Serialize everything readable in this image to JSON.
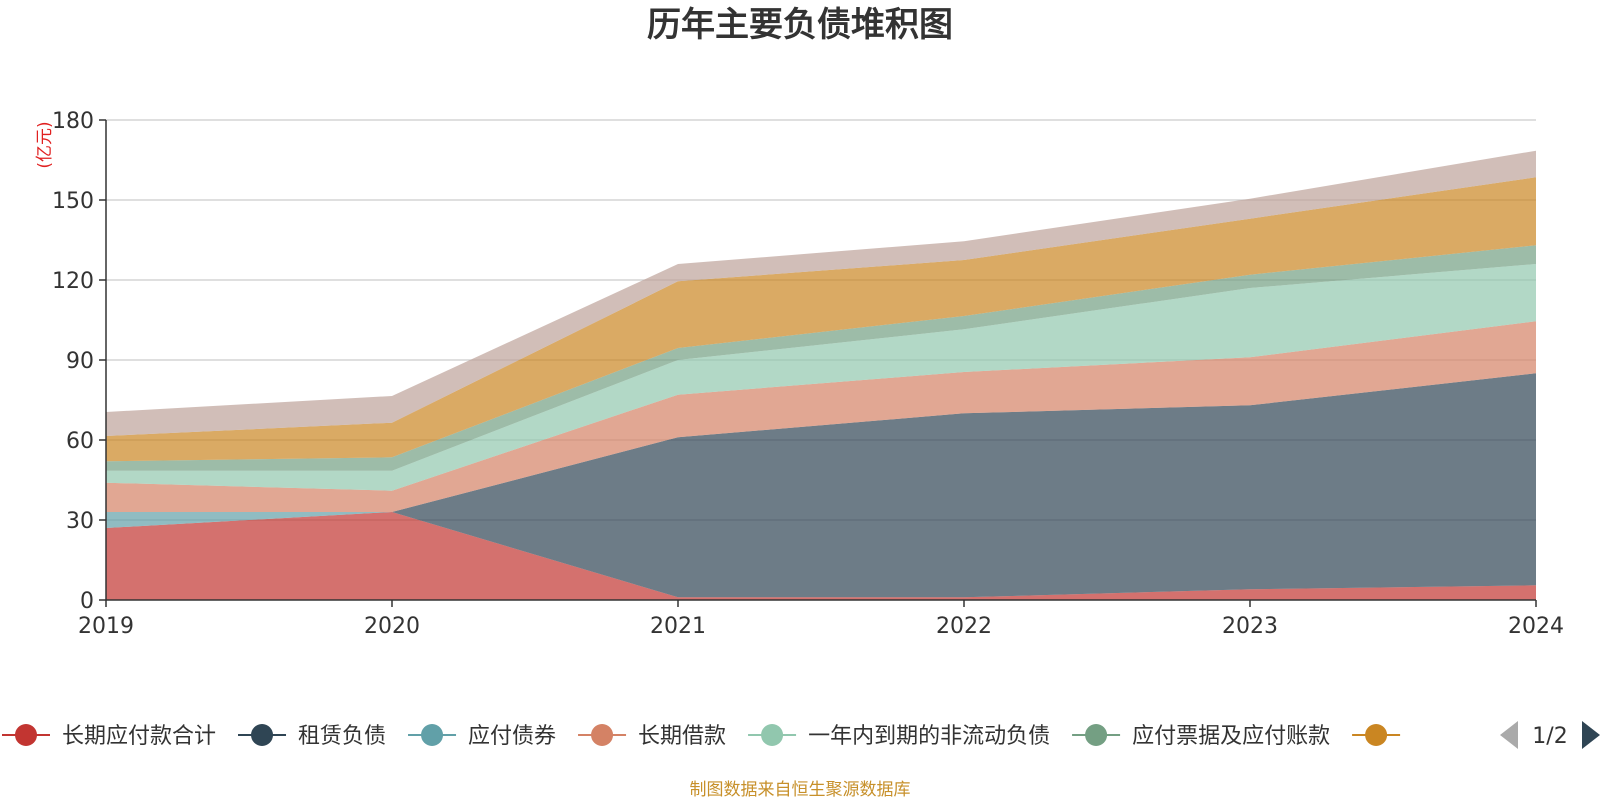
{
  "chart_data": {
    "type": "area",
    "stacked": true,
    "title": "历年主要负债堆积图",
    "y_unit": "(亿元)",
    "categories": [
      "2019",
      "2020",
      "2021",
      "2022",
      "2023",
      "2024"
    ],
    "ylim": [
      0,
      180
    ],
    "yticks": [
      0,
      30,
      60,
      90,
      120,
      150,
      180
    ],
    "grid": true,
    "series": [
      {
        "name": "长期应付款合计",
        "color": "#c23531",
        "values": [
          27,
          33,
          1,
          1,
          4,
          5.5
        ]
      },
      {
        "name": "租赁负债",
        "color": "#2f4554",
        "values": [
          0,
          0,
          60,
          69,
          69,
          79.5
        ]
      },
      {
        "name": "应付债券",
        "color": "#61a0a8",
        "values": [
          6,
          0,
          0,
          0,
          0,
          0
        ]
      },
      {
        "name": "长期借款",
        "color": "#d48265",
        "values": [
          11,
          8,
          16,
          15.5,
          18,
          19.5
        ]
      },
      {
        "name": "一年内到期的非流动负债",
        "color": "#91c7ae",
        "values": [
          4.5,
          7.5,
          13,
          16,
          26,
          21.5
        ]
      },
      {
        "name": "应付票据及应付账款",
        "color": "#749f83",
        "values": [
          3.5,
          5,
          4.5,
          5,
          5,
          7
        ]
      },
      {
        "name": "",
        "color": "#ca8622",
        "values": [
          9.5,
          13,
          25,
          21,
          21,
          25.5
        ]
      },
      {
        "name": "",
        "color": "#bda29a",
        "values": [
          9,
          10,
          6.5,
          7,
          7.5,
          10
        ]
      }
    ]
  },
  "legend": {
    "page_indicator": "1/2",
    "prev_icon": "triangle-left-icon",
    "next_icon": "triangle-right-icon"
  },
  "source_note": "制图数据来自恒生聚源数据库"
}
